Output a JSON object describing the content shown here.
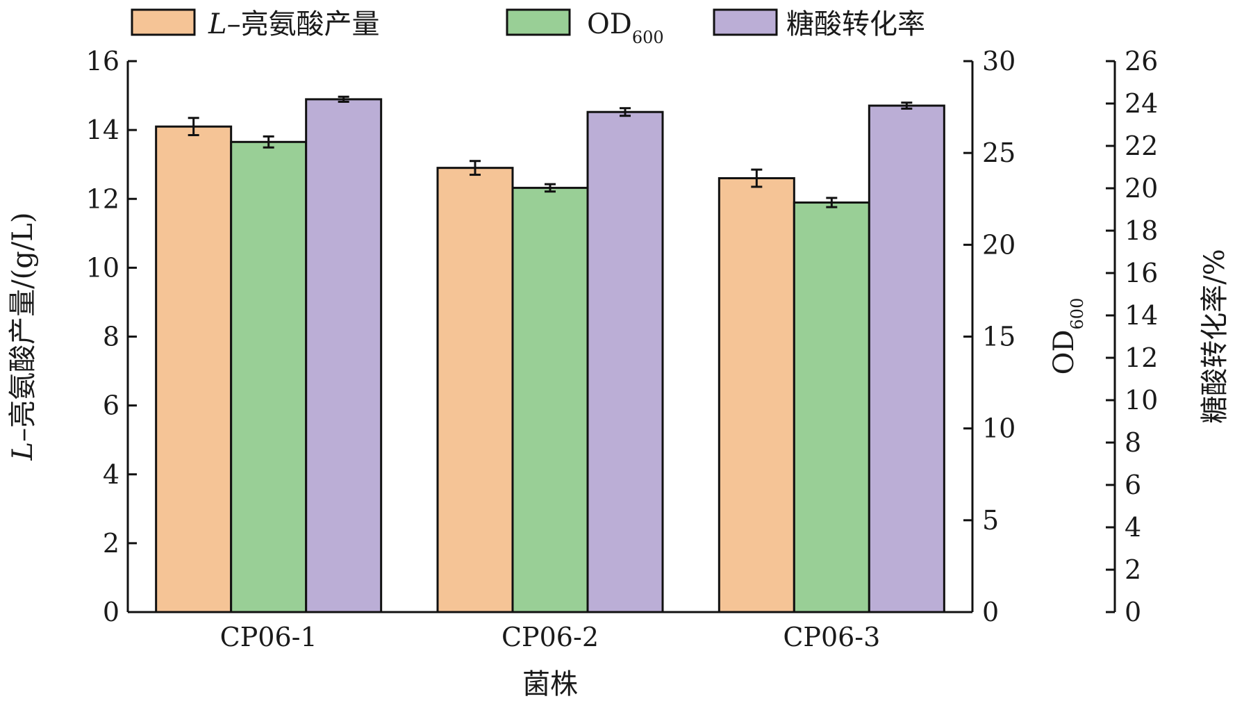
{
  "chart_data": {
    "type": "bar",
    "categories": [
      "CP06-1",
      "CP06-2",
      "CP06-3"
    ],
    "xlabel": "菌株",
    "series": [
      {
        "name": "L-亮氨酸产量",
        "name_prefix": "L",
        "name_rest": "–亮氨酸产量",
        "axis": "left",
        "color": "#f5c496",
        "values": [
          14.1,
          12.9,
          12.6
        ],
        "errors": [
          0.25,
          0.2,
          0.25
        ]
      },
      {
        "name": "OD600",
        "name_main": "OD",
        "name_sub": "600",
        "axis": "right1",
        "color": "#99cf96",
        "values": [
          25.6,
          23.1,
          22.3
        ],
        "errors": [
          0.3,
          0.2,
          0.25
        ]
      },
      {
        "name": "糖酸转化率",
        "axis": "right2",
        "color": "#bbaed6",
        "values": [
          24.2,
          23.6,
          23.9
        ],
        "errors": [
          0.12,
          0.18,
          0.14
        ]
      }
    ],
    "axes": {
      "left": {
        "label_prefix": "L",
        "label_rest": "–亮氨酸产量/(g/L)",
        "ylim": [
          0,
          16
        ],
        "ticks": [
          "0",
          "2",
          "4",
          "6",
          "8",
          "10",
          "12",
          "14",
          "16"
        ]
      },
      "right1": {
        "label_main": "OD",
        "label_sub": "600",
        "ylim": [
          0,
          30
        ],
        "ticks": [
          "0",
          "5",
          "10",
          "15",
          "20",
          "25",
          "30"
        ]
      },
      "right2": {
        "label": "糖酸转化率/%",
        "ylim": [
          0,
          26
        ],
        "ticks": [
          "0",
          "2",
          "4",
          "6",
          "8",
          "10",
          "12",
          "14",
          "16",
          "18",
          "20",
          "22",
          "24",
          "26"
        ]
      }
    },
    "legend_position": "top",
    "grid": false
  }
}
